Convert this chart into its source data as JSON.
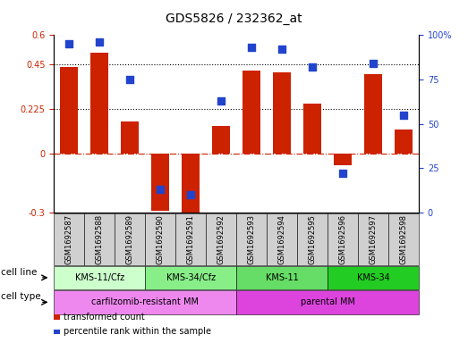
{
  "title": "GDS5826 / 232362_at",
  "samples": [
    "GSM1692587",
    "GSM1692588",
    "GSM1692589",
    "GSM1692590",
    "GSM1692591",
    "GSM1692592",
    "GSM1692593",
    "GSM1692594",
    "GSM1692595",
    "GSM1692596",
    "GSM1692597",
    "GSM1692598"
  ],
  "transformed_count": [
    0.44,
    0.51,
    0.16,
    -0.29,
    -0.32,
    0.14,
    0.42,
    0.41,
    0.25,
    -0.06,
    0.4,
    0.12
  ],
  "percentile_rank": [
    95,
    96,
    75,
    13,
    10,
    63,
    93,
    92,
    82,
    22,
    84,
    55
  ],
  "ylim_left": [
    -0.3,
    0.6
  ],
  "ylim_right": [
    0,
    100
  ],
  "yticks_left": [
    -0.3,
    0,
    0.225,
    0.45,
    0.6
  ],
  "yticks_right": [
    0,
    25,
    50,
    75,
    100
  ],
  "hlines": [
    0.225,
    0.45
  ],
  "bar_color": "#cc2200",
  "dot_color": "#2244cc",
  "zero_line_color": "#cc2200",
  "cell_line_groups": [
    {
      "label": "KMS-11/Cfz",
      "start": 0,
      "end": 3,
      "color": "#ccffcc"
    },
    {
      "label": "KMS-34/Cfz",
      "start": 3,
      "end": 6,
      "color": "#88ee88"
    },
    {
      "label": "KMS-11",
      "start": 6,
      "end": 9,
      "color": "#66dd66"
    },
    {
      "label": "KMS-34",
      "start": 9,
      "end": 12,
      "color": "#22cc22"
    }
  ],
  "cell_type_groups": [
    {
      "label": "carfilzomib-resistant MM",
      "start": 0,
      "end": 6,
      "color": "#ee88ee"
    },
    {
      "label": "parental MM",
      "start": 6,
      "end": 12,
      "color": "#dd44dd"
    }
  ],
  "cell_line_label": "cell line",
  "cell_type_label": "cell type",
  "legend_items": [
    {
      "color": "#cc2200",
      "label": "transformed count"
    },
    {
      "color": "#2244cc",
      "label": "percentile rank within the sample"
    }
  ],
  "bar_width": 0.6,
  "dot_size": 30,
  "title_fontsize": 10,
  "tick_fontsize": 7,
  "sample_fontsize": 6,
  "row_label_fontsize": 7.5,
  "group_label_fontsize": 7,
  "legend_fontsize": 7
}
